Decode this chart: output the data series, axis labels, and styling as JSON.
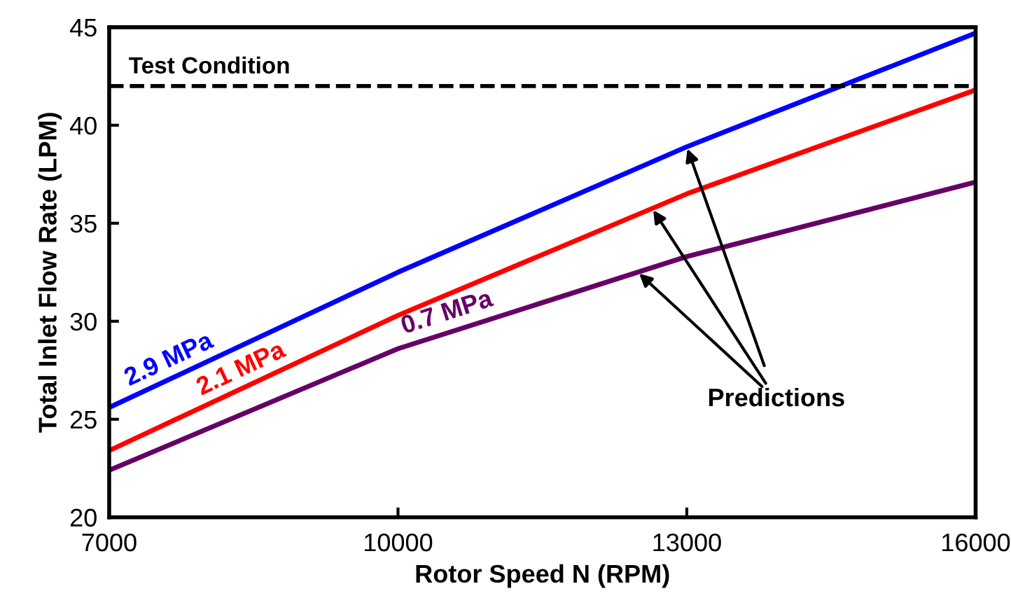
{
  "chart_data": {
    "type": "line",
    "xlabel": "Rotor Speed N (RPM)",
    "ylabel": "Total Inlet Flow Rate (LPM)",
    "x": [
      7000,
      10000,
      13000,
      16000
    ],
    "series": [
      {
        "name": "2.9 MPa",
        "color": "#0000ff",
        "values": [
          25.6,
          32.5,
          38.9,
          44.7
        ]
      },
      {
        "name": "2.1 MPa",
        "color": "#ff0000",
        "values": [
          23.4,
          30.3,
          36.5,
          41.8
        ]
      },
      {
        "name": "0.7 MPa",
        "color": "#660066",
        "values": [
          22.4,
          28.6,
          33.3,
          37.1
        ]
      }
    ],
    "xlim": [
      7000,
      16000
    ],
    "xticks": [
      7000,
      10000,
      13000,
      16000
    ],
    "ylim": [
      20,
      45
    ],
    "yticks": [
      20,
      25,
      30,
      35,
      40,
      45
    ],
    "ref_lines": [
      {
        "axis": "y",
        "value": 42,
        "label": "Test Condition",
        "color": "#000000",
        "line_style": "dashed"
      }
    ],
    "annotations": [
      {
        "text": "Predictions",
        "x": 13000,
        "y": 38.9
      }
    ],
    "grid": false,
    "legend": false,
    "marker": "none",
    "line_style": "solid"
  }
}
